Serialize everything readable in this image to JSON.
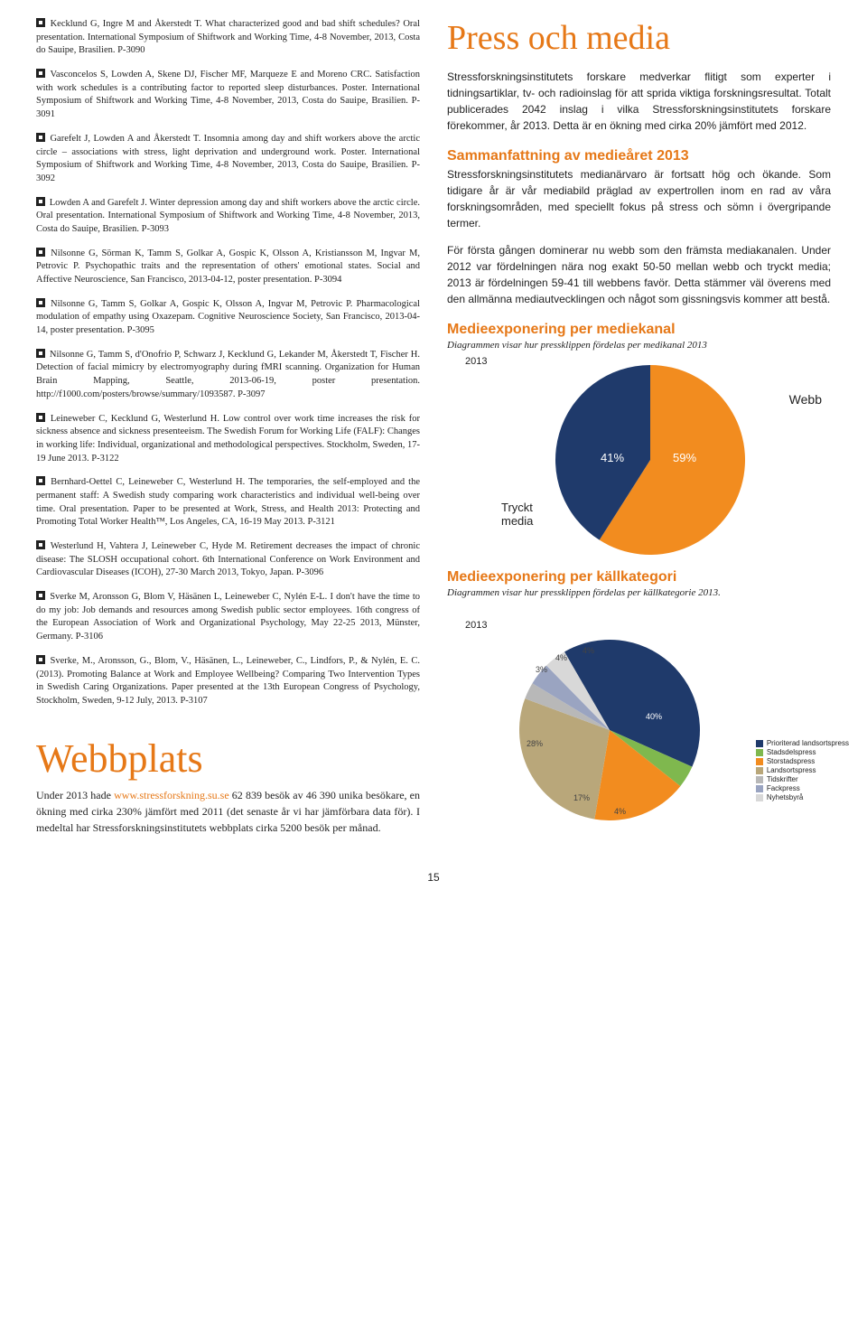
{
  "references": [
    "Kecklund G, Ingre M and Åkerstedt T. What characterized good and bad shift schedules? Oral presentation. International Symposium of Shiftwork and Working Time, 4-8 November, 2013, Costa do Sauipe, Brasilien. P-3090",
    "Vasconcelos S, Lowden A, Skene DJ, Fischer MF, Marqueze E and Moreno CRC. Satisfaction with work schedules is a contributing factor to reported sleep disturbances. Poster. International Symposium of Shiftwork and Working Time, 4-8 November, 2013, Costa do Sauipe, Brasilien. P-3091",
    "Garefelt J, Lowden A and Åkerstedt T. Insomnia among day and shift workers above the arctic circle – associations with stress, light deprivation and underground work. Poster. International Symposium of Shiftwork and Working Time, 4-8 November, 2013, Costa do Sauipe, Brasilien. P-3092",
    "Lowden A and Garefelt J. Winter depression among day and shift workers above the arctic circle. Oral presentation. International Symposium of Shiftwork and Working Time, 4-8 November, 2013, Costa do Sauipe, Brasilien. P-3093",
    "Nilsonne G, Sörman K, Tamm S, Golkar A, Gospic K, Olsson A, Kristiansson M, Ingvar M, Petrovic P. Psychopathic traits and the representation of others' emotional states. Social and Affective Neuroscience, San Francisco, 2013-04-12, poster presentation. P-3094",
    "Nilsonne G, Tamm S, Golkar A, Gospic K, Olsson A, Ingvar M, Petrovic P. Pharmacological modulation of empathy using Oxazepam. Cognitive Neuroscience Society, San Francisco, 2013-04-14, poster presentation. P-3095",
    "Nilsonne G, Tamm S, d'Onofrio P, Schwarz J, Kecklund G, Lekander M, Åkerstedt T, Fischer H. Detection of facial mimicry by electromyography during fMRI scanning. Organization for Human Brain Mapping, Seattle, 2013-06-19, poster presentation. http://f1000.com/posters/browse/summary/1093587. P-3097",
    "Leineweber C, Kecklund G, Westerlund H. Low control over work time increases the risk for sickness absence and sickness presenteeism. The Swedish Forum for Working Life (FALF): Changes in working life: Individual, organizational and methodological perspectives. Stockholm, Sweden, 17-19 June 2013. P-3122",
    "Bernhard-Oettel C, Leineweber C, Westerlund H. The temporaries, the self-employed and the permanent staff: A Swedish study comparing work characteristics and individual well-being over time. Oral presentation. Paper to be presented at Work, Stress, and Health 2013: Protecting and Promoting Total Worker Health™, Los Angeles, CA, 16-19 May 2013. P-3121",
    "Westerlund H, Vahtera J, Leineweber C, Hyde M. Retirement decreases the impact of chronic disease: The SLOSH occupational cohort. 6th International Conference on Work Environment and Cardiovascular Diseases (ICOH), 27-30 March 2013, Tokyo, Japan. P-3096",
    "Sverke M, Aronsson G, Blom V, Häsänen L, Leineweber C, Nylén E-L. I don't have the time to do my job: Job demands and resources among Swedish public sector employees. 16th congress of the European Association of Work and Organizational Psychology, May 22-25 2013, Münster, Germany. P-3106",
    "Sverke, M., Aronsson, G., Blom, V., Häsänen, L., Leineweber, C., Lindfors, P., & Nylén, E. C. (2013). Promoting Balance at Work and Employee Wellbeing? Comparing Two Intervention Types in Swedish Caring Organizations. Paper presented at the 13th European Congress of Psychology, Stockholm, Sweden, 9-12 July, 2013. P-3107"
  ],
  "press": {
    "heading": "Press och media",
    "intro": "Stressforskningsinstitutets forskare medverkar flitigt som experter i tidningsartiklar, tv- och radioinslag för att sprida viktiga forskningsresultat. Totalt publicerades 2042 inslag i vilka Stressforskningsinstitutets forskare förekommer, år 2013. Detta är en ökning med cirka 20% jämfört med 2012.",
    "sammanfattning_head": "Sammanfattning av medieåret 2013",
    "sammanfattning_p1": "Stressforskningsinstitutets medianärvaro är fortsatt hög och ökande. Som tidigare år är vår mediabild präglad av expertrollen inom en rad av våra forskningsområden, med speciellt fokus på stress och sömn i övergripande termer.",
    "sammanfattning_p2": "För första gången dominerar nu webb som den främsta mediakanalen. Under 2012 var fördelningen nära nog exakt 50-50 mellan webb och tryckt media; 2013 är fördelningen 59-41 till webbens favör. Detta stämmer väl överens med den allmänna mediautvecklingen och något som gissningsvis kommer att bestå.",
    "mediekanal_head": "Medieexponering per mediekanal",
    "mediekanal_caption": "Diagrammen visar hur pressklippen fördelas per medikanal 2013",
    "kallkategori_head": "Medieexponering per källkategori",
    "kallkategori_caption": "Diagrammen visar hur pressklippen fördelas per källkategorie 2013."
  },
  "pie1": {
    "year": "2013",
    "slices": [
      {
        "label": "Webb",
        "value": 59,
        "color": "#f28c1f",
        "text": "59%"
      },
      {
        "label": "Tryckt media",
        "value": 41,
        "color": "#1f3a6b",
        "text": "41%"
      }
    ],
    "label_webb": "Webb",
    "label_tryckt": "Tryckt\nmedia"
  },
  "pie2": {
    "year": "2013",
    "slices": [
      {
        "value": 40,
        "color": "#1f3a6b",
        "text": "40%"
      },
      {
        "value": 4,
        "color": "#7fb84e",
        "text": "4%"
      },
      {
        "value": 17,
        "color": "#f28c1f",
        "text": "17%"
      },
      {
        "value": 28,
        "color": "#b9a77a",
        "text": "28%"
      },
      {
        "value": 3,
        "color": "#b8b8b8",
        "text": "3%"
      },
      {
        "value": 4,
        "color": "#9aa4c1",
        "text": "4%"
      },
      {
        "value": 4,
        "color": "#d8d8d8",
        "text": "4%"
      }
    ],
    "legend": [
      {
        "label": "Prioriterad landsortspress",
        "color": "#1f3a6b"
      },
      {
        "label": "Stadsdelspress",
        "color": "#7fb84e"
      },
      {
        "label": "Storstadspress",
        "color": "#f28c1f"
      },
      {
        "label": "Landsortspress",
        "color": "#b9a77a"
      },
      {
        "label": "Tidskrifter",
        "color": "#b8b8b8"
      },
      {
        "label": "Fackpress",
        "color": "#9aa4c1"
      },
      {
        "label": "Nyhetsbyrå",
        "color": "#d8d8d8"
      }
    ]
  },
  "webbplats": {
    "heading": "Webbplats",
    "text_before_link": "Under 2013 hade ",
    "link": "www.stressforskning.su.se",
    "text_after_link": " 62 839 besök av 46 390 unika besökare, en ökning med cirka 230% jämfört med 2011 (det senaste år vi har jämförbara data för). I medeltal har Stressforskningsinstitutets webbplats cirka 5200 besök per månad."
  },
  "page_number": "15"
}
